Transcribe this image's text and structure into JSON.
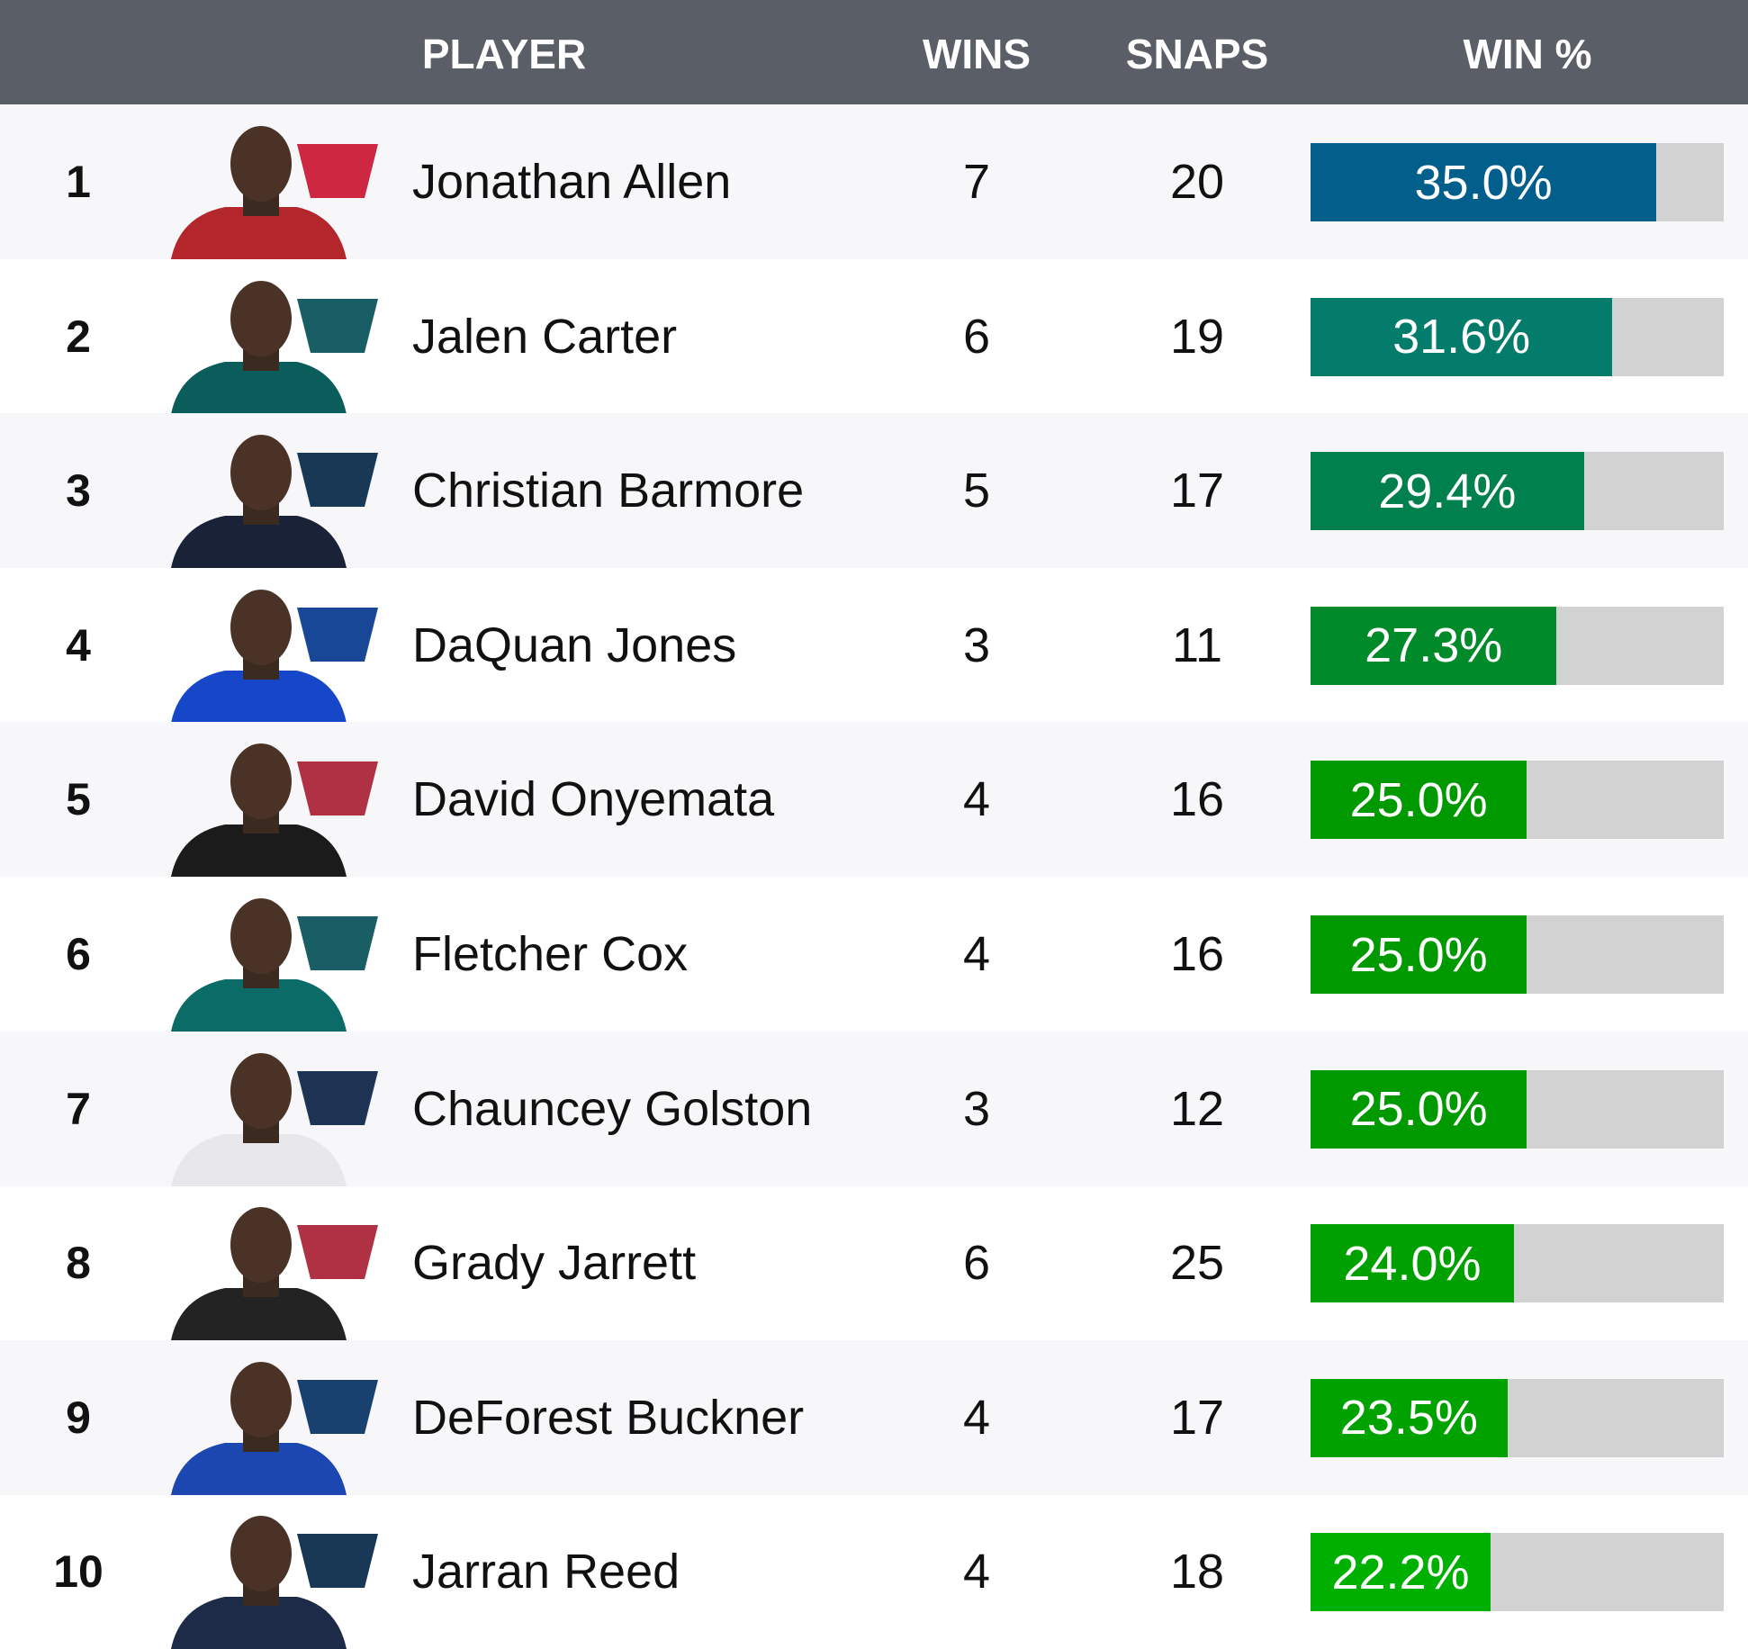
{
  "header": {
    "player": "PLAYER",
    "wins": "WINS",
    "snaps": "SNAPS",
    "win_pct": "WIN %"
  },
  "rows": [
    {
      "rank": "1",
      "name": "Jonathan Allen",
      "team_icon": "commanders-logo",
      "wins": "7",
      "snaps": "20",
      "win_pct": "35.0%",
      "value": 35.0,
      "color": "#025e8b",
      "jersey": "#b3262b",
      "logo_color": "#c8102e"
    },
    {
      "rank": "2",
      "name": "Jalen Carter",
      "team_icon": "eagles-logo",
      "wins": "6",
      "snaps": "19",
      "win_pct": "31.6%",
      "value": 31.6,
      "color": "#047c6c",
      "jersey": "#0b5d5c",
      "logo_color": "#004c54"
    },
    {
      "rank": "3",
      "name": "Christian Barmore",
      "team_icon": "patriots-logo",
      "wins": "5",
      "snaps": "17",
      "win_pct": "29.4%",
      "value": 29.4,
      "color": "#00804d",
      "jersey": "#1a2238",
      "logo_color": "#002244"
    },
    {
      "rank": "4",
      "name": "DaQuan Jones",
      "team_icon": "bills-logo",
      "wins": "3",
      "snaps": "11",
      "win_pct": "27.3%",
      "value": 27.3,
      "color": "#008a2a",
      "jersey": "#1747c9",
      "logo_color": "#00338d"
    },
    {
      "rank": "5",
      "name": "David Onyemata",
      "team_icon": "falcons-logo",
      "wins": "4",
      "snaps": "16",
      "win_pct": "25.0%",
      "value": 25.0,
      "color": "#009a00",
      "jersey": "#1b1b1b",
      "logo_color": "#a71930"
    },
    {
      "rank": "6",
      "name": "Fletcher Cox",
      "team_icon": "eagles-logo",
      "wins": "4",
      "snaps": "16",
      "win_pct": "25.0%",
      "value": 25.0,
      "color": "#009a00",
      "jersey": "#0b6b66",
      "logo_color": "#004c54"
    },
    {
      "rank": "7",
      "name": "Chauncey Golston",
      "team_icon": "cowboys-logo",
      "wins": "3",
      "snaps": "12",
      "win_pct": "25.0%",
      "value": 25.0,
      "color": "#009a00",
      "jersey": "#e8e8ea",
      "logo_color": "#041e42"
    },
    {
      "rank": "8",
      "name": "Grady Jarrett",
      "team_icon": "falcons-logo",
      "wins": "6",
      "snaps": "25",
      "win_pct": "24.0%",
      "value": 24.0,
      "color": "#00a000",
      "jersey": "#232323",
      "logo_color": "#a71930"
    },
    {
      "rank": "9",
      "name": "DeForest Buckner",
      "team_icon": "colts-logo",
      "wins": "4",
      "snaps": "17",
      "win_pct": "23.5%",
      "value": 23.5,
      "color": "#00a200",
      "jersey": "#1c46b0",
      "logo_color": "#002c5f"
    },
    {
      "rank": "10",
      "name": "Jarran Reed",
      "team_icon": "seahawks-logo",
      "wins": "4",
      "snaps": "18",
      "win_pct": "22.2%",
      "value": 22.2,
      "color": "#00b000",
      "jersey": "#1d2b48",
      "logo_color": "#002244"
    }
  ]
}
